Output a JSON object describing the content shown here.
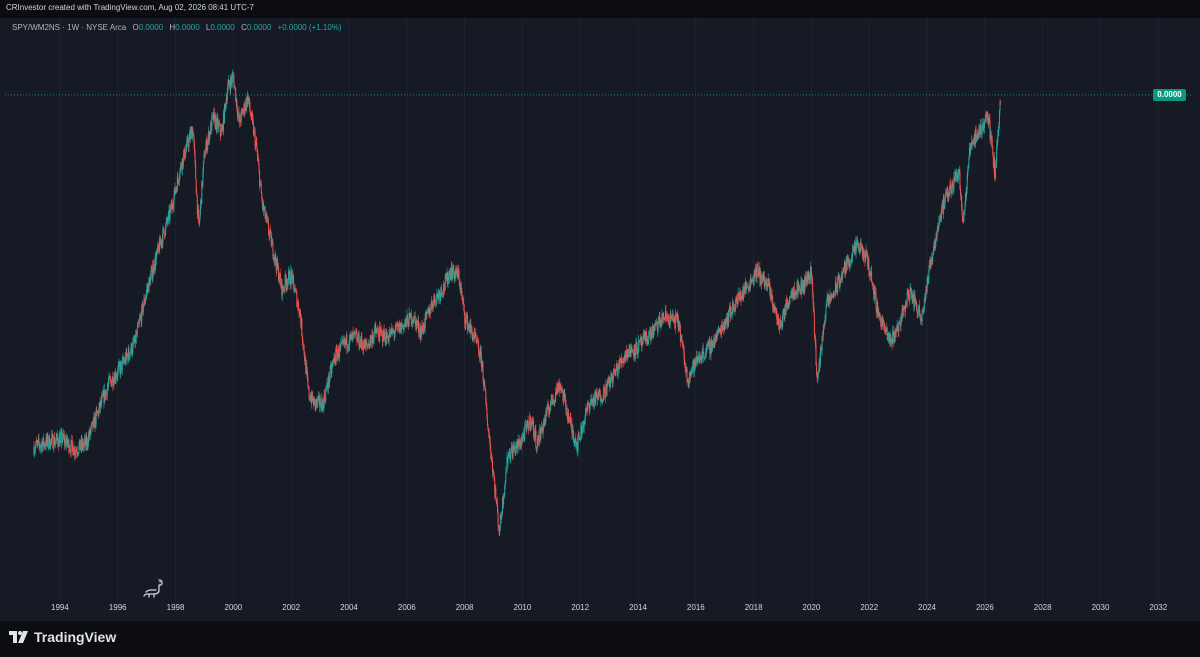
{
  "header": {
    "text": "CRInvestor created with TradingView.com, Aug 02, 2026 08:41 UTC-7"
  },
  "legend": {
    "symbol": "SPY/WM2NS · 1W · NYSE Arca",
    "o_label": "O",
    "o_value": "0.0000",
    "h_label": "H",
    "h_value": "0.0000",
    "l_label": "L",
    "l_value": "0.0000",
    "c_label": "C",
    "c_value": "0.0000",
    "change": "+0.0000 (+1.10%)"
  },
  "price_badge": {
    "text": "0.0000",
    "color": "#089981"
  },
  "footer": {
    "brand": "TradingView"
  },
  "colors": {
    "background": "#161a25",
    "up": "#26a69a",
    "down": "#ef5350",
    "grid": "#1f2330",
    "axis_text": "#d1d4dc"
  },
  "icons": {
    "mascot": "dinosaur-icon",
    "brand_logo": "tradingview-logo-icon"
  },
  "chart_data": {
    "type": "candlestick",
    "title": "",
    "xlabel": "",
    "ylabel": "",
    "x_ticks": [
      "1994",
      "1996",
      "1998",
      "2000",
      "2002",
      "2004",
      "2006",
      "2008",
      "2010",
      "2012",
      "2014",
      "2016",
      "2018",
      "2020",
      "2022",
      "2024",
      "2026",
      "2028",
      "2030",
      "2032"
    ],
    "x_range": [
      1992.1,
      2033.2
    ],
    "y_scale": "relative (ratio SPY / M2 money supply)",
    "last_value_label": "0.0000",
    "last_value_relative": 1.0,
    "series": [
      {
        "dates": [
          1993.1,
          1993.6,
          1994.1,
          1994.5,
          1994.9,
          1995.3,
          1995.7,
          1996.1,
          1996.6,
          1997.0,
          1997.5,
          1997.8,
          1998.2,
          1998.6,
          1998.8,
          1999.0,
          1999.3,
          1999.6,
          1999.8,
          2000.0,
          2000.2,
          2000.5,
          2000.8,
          2001.0,
          2001.3,
          2001.7,
          2001.8,
          2002.0,
          2002.3,
          2002.6,
          2002.8,
          2003.1,
          2003.5,
          2003.9,
          2004.2,
          2004.6,
          2004.9,
          2005.3,
          2005.8,
          2006.2,
          2006.5,
          2006.9,
          2007.3,
          2007.5,
          2007.8,
          2008.0,
          2008.4,
          2008.6,
          2008.8,
          2009.0,
          2009.2,
          2009.5,
          2009.9,
          2010.3,
          2010.5,
          2010.9,
          2011.3,
          2011.7,
          2011.9,
          2012.3,
          2012.8,
          2013.2,
          2013.6,
          2014.0,
          2014.5,
          2014.9,
          2015.4,
          2015.7,
          2016.1,
          2016.5,
          2016.9,
          2017.4,
          2017.9,
          2018.1,
          2018.5,
          2018.9,
          2019.3,
          2019.7,
          2020.0,
          2020.2,
          2020.5,
          2020.8,
          2021.2,
          2021.6,
          2021.95,
          2022.3,
          2022.7,
          2023.0,
          2023.4,
          2023.8,
          2024.2,
          2024.5,
          2024.8,
          2025.1,
          2025.25,
          2025.5,
          2025.9,
          2026.1,
          2026.35,
          2026.55
        ],
        "values": [
          0.295,
          0.305,
          0.31,
          0.29,
          0.3,
          0.36,
          0.42,
          0.45,
          0.5,
          0.6,
          0.7,
          0.75,
          0.85,
          0.92,
          0.72,
          0.87,
          0.94,
          0.91,
          1.0,
          1.02,
          0.93,
          0.98,
          0.88,
          0.77,
          0.7,
          0.6,
          0.62,
          0.63,
          0.56,
          0.4,
          0.38,
          0.38,
          0.47,
          0.5,
          0.51,
          0.49,
          0.52,
          0.51,
          0.53,
          0.55,
          0.52,
          0.58,
          0.61,
          0.64,
          0.63,
          0.55,
          0.5,
          0.46,
          0.34,
          0.24,
          0.13,
          0.28,
          0.3,
          0.35,
          0.3,
          0.37,
          0.42,
          0.33,
          0.3,
          0.38,
          0.4,
          0.44,
          0.48,
          0.49,
          0.52,
          0.55,
          0.54,
          0.43,
          0.47,
          0.49,
          0.53,
          0.58,
          0.62,
          0.64,
          0.61,
          0.53,
          0.6,
          0.61,
          0.64,
          0.42,
          0.57,
          0.6,
          0.65,
          0.69,
          0.66,
          0.56,
          0.5,
          0.53,
          0.6,
          0.55,
          0.68,
          0.76,
          0.8,
          0.84,
          0.73,
          0.89,
          0.92,
          0.95,
          0.83,
          0.99
        ]
      }
    ]
  }
}
